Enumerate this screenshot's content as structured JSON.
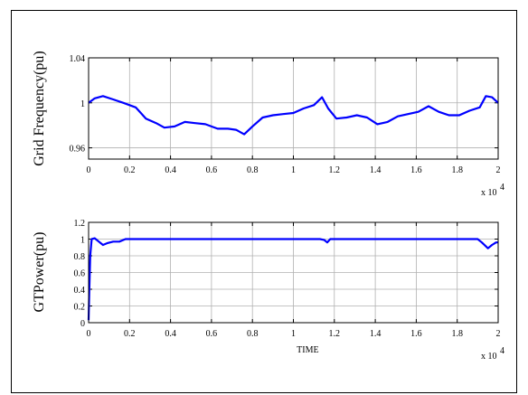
{
  "chart_data": [
    {
      "type": "line",
      "title": "",
      "xlabel": "",
      "ylabel": "Grid Frequency(pu)",
      "xlim": [
        0,
        20000
      ],
      "ylim": [
        0.95,
        1.04
      ],
      "x_ticks": [
        "0",
        "0.2",
        "0.4",
        "0.6",
        "0.8",
        "1",
        "1.2",
        "1.4",
        "1.6",
        "1.8",
        "2"
      ],
      "x_multiplier_base": "x 10",
      "x_multiplier_exp": "4",
      "y_ticks": [
        "0.96",
        "1",
        "1.04"
      ],
      "y_tick_values": [
        0.96,
        1.0,
        1.04
      ],
      "grid": true,
      "series": [
        {
          "color": "#0000ff",
          "x": [
            0,
            300,
            700,
            1200,
            1700,
            2300,
            2800,
            3300,
            3700,
            4200,
            4700,
            5200,
            5700,
            6300,
            6800,
            7200,
            7600,
            8000,
            8500,
            9000,
            9500,
            10000,
            10500,
            11000,
            11400,
            11700,
            12100,
            12600,
            13100,
            13600,
            14100,
            14600,
            15100,
            15600,
            16100,
            16600,
            17100,
            17600,
            18100,
            18600,
            19100,
            19400,
            19700,
            20000
          ],
          "y": [
            1.0,
            1.004,
            1.006,
            1.003,
            1.0,
            0.996,
            0.986,
            0.982,
            0.978,
            0.979,
            0.983,
            0.982,
            0.981,
            0.977,
            0.977,
            0.976,
            0.972,
            0.979,
            0.987,
            0.989,
            0.99,
            0.991,
            0.995,
            0.998,
            1.005,
            0.995,
            0.986,
            0.987,
            0.989,
            0.987,
            0.981,
            0.983,
            0.988,
            0.99,
            0.992,
            0.997,
            0.992,
            0.989,
            0.989,
            0.993,
            0.996,
            1.006,
            1.005,
            1.0
          ]
        }
      ]
    },
    {
      "type": "line",
      "title": "",
      "xlabel": "TIME",
      "ylabel": "GTPower(pu)",
      "xlim": [
        0,
        20000
      ],
      "ylim": [
        0,
        1.2
      ],
      "x_ticks": [
        "0",
        "0.2",
        "0.4",
        "0.6",
        "0.8",
        "1",
        "1.2",
        "1.4",
        "1.6",
        "1.8",
        "2"
      ],
      "x_multiplier_base": "x 10",
      "x_multiplier_exp": "4",
      "y_ticks": [
        "0",
        "0.2",
        "0.4",
        "0.6",
        "0.8",
        "1",
        "1.2"
      ],
      "y_tick_values": [
        0,
        0.2,
        0.4,
        0.6,
        0.8,
        1.0,
        1.2
      ],
      "grid": true,
      "series": [
        {
          "color": "#0000ff",
          "x": [
            0,
            30,
            80,
            150,
            300,
            500,
            700,
            900,
            1200,
            1500,
            1800,
            2000,
            5000,
            10000,
            11300,
            11500,
            11650,
            11800,
            12000,
            15000,
            19000,
            19200,
            19500,
            19700,
            19900,
            20000
          ],
          "y": [
            0.03,
            0.35,
            0.8,
            1.0,
            1.01,
            0.97,
            0.93,
            0.95,
            0.97,
            0.97,
            1.0,
            1.0,
            1.0,
            1.0,
            1.0,
            0.99,
            0.96,
            1.0,
            1.0,
            1.0,
            1.0,
            0.96,
            0.89,
            0.93,
            0.96,
            0.96
          ]
        }
      ]
    }
  ]
}
